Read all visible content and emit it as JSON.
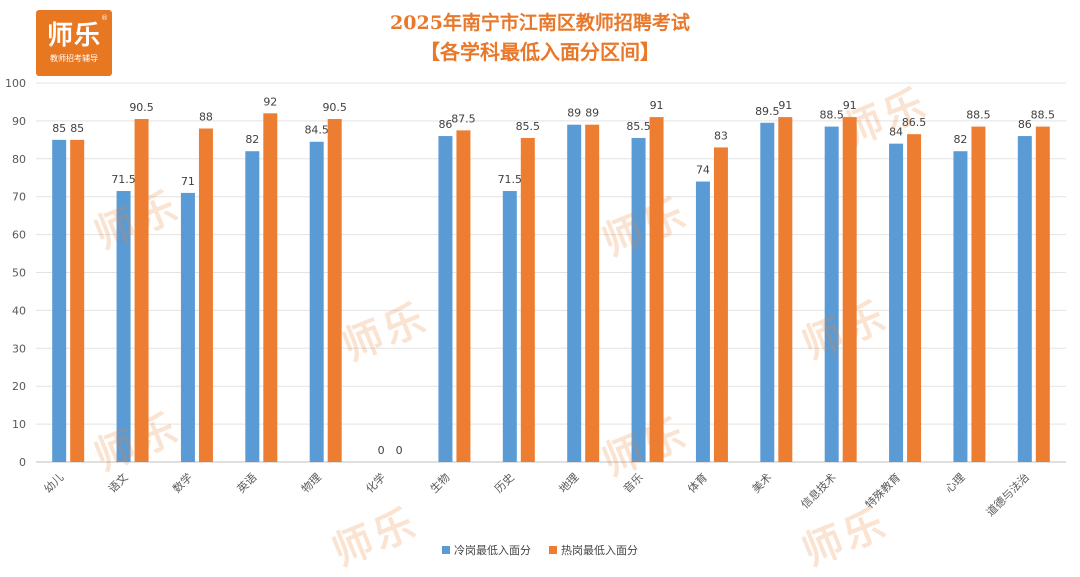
{
  "logo": {
    "brand": "师乐",
    "tagline": "教师招考辅导"
  },
  "watermark": "师乐",
  "chart_data": {
    "type": "bar",
    "title": "2025年南宁市江南区教师招聘考试",
    "subtitle": "【各学科最低入面分区间】",
    "categories": [
      "幼儿",
      "语文",
      "数学",
      "英语",
      "物理",
      "化学",
      "生物",
      "历史",
      "地理",
      "音乐",
      "体育",
      "美术",
      "信息技术",
      "特殊教育",
      "心理",
      "道德与法治"
    ],
    "series": [
      {
        "name": "冷岗最低入面分",
        "color": "#5b9bd5",
        "values": [
          85,
          71.5,
          71,
          82,
          84.5,
          0,
          86,
          71.5,
          89,
          85.5,
          74,
          89.5,
          88.5,
          84,
          82,
          86
        ]
      },
      {
        "name": "热岗最低入面分",
        "color": "#ed7d31",
        "values": [
          85,
          90.5,
          88,
          92,
          90.5,
          0,
          87.5,
          85.5,
          89,
          91,
          83,
          91,
          91,
          86.5,
          88.5,
          88.5
        ]
      }
    ],
    "ylim": [
      0,
      100
    ],
    "yticks": [
      0,
      10,
      20,
      30,
      40,
      50,
      60,
      70,
      80,
      90,
      100
    ],
    "grid": true,
    "legend_position": "bottom"
  }
}
